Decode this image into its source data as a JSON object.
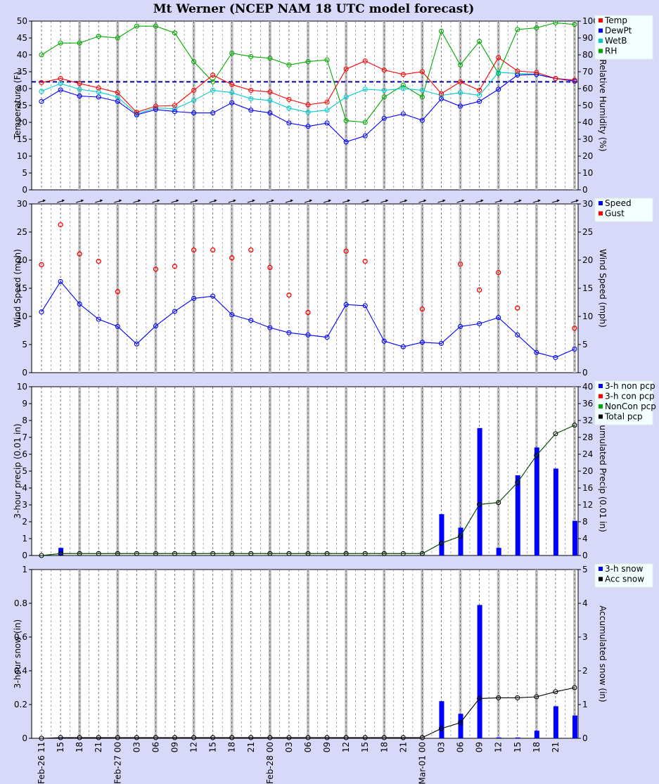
{
  "title": "Mt Werner (NCEP NAM 18 UTC model forecast)",
  "time_labels": [
    "Feb-26 11",
    "15",
    "18",
    "21",
    "Feb-27 00",
    "03",
    "06",
    "09",
    "12",
    "15",
    "18",
    "21",
    "Feb-28 00",
    "03",
    "06",
    "09",
    "12",
    "15",
    "18",
    "21",
    "Mar-01 00",
    "03",
    "06",
    "09",
    "12",
    "15",
    "18",
    "21"
  ],
  "colors": {
    "temp": "#ff0000",
    "dewpt": "#0000ff",
    "wetb": "#00cccc",
    "rh": "#00aa00",
    "speed": "#0000ff",
    "gust": "#ff0000",
    "nonpcp": "#0000ff",
    "conpcp": "#ff0000",
    "noncon": "#00aa00",
    "total": "#000000"
  },
  "chart_data": [
    {
      "type": "line",
      "ylabel": "Temperature (F)",
      "ylabel_right": "Relative Humidity (%)",
      "ylim": [
        0,
        50
      ],
      "ylim_right": [
        0,
        100
      ],
      "yticks": [
        0,
        5,
        10,
        15,
        20,
        25,
        30,
        35,
        40,
        45,
        50
      ],
      "yticks_right": [
        0,
        10,
        20,
        30,
        40,
        50,
        60,
        70,
        80,
        90,
        100
      ],
      "freezing_line": 32,
      "legend": [
        "Temp",
        "DewPt",
        "WetB",
        "RH"
      ],
      "series": [
        {
          "name": "Temp",
          "values": [
            31.8,
            33,
            31.5,
            30.2,
            28.8,
            23,
            24.8,
            25,
            29.5,
            34,
            31.2,
            29.5,
            29,
            26.8,
            25.2,
            26,
            35.8,
            38.2,
            35.5,
            34.2,
            35,
            28.5,
            32,
            29.5,
            39.2,
            35.2,
            34.8,
            33,
            32.5
          ]
        },
        {
          "name": "DewPt",
          "values": [
            26.2,
            29.6,
            27.8,
            27.5,
            26.2,
            22.2,
            23.8,
            23.2,
            22.8,
            22.8,
            25.8,
            23.6,
            22.8,
            19.8,
            18.8,
            19.8,
            14.2,
            16,
            21.2,
            22.5,
            20.6,
            27,
            24.8,
            26.2,
            29.8,
            34,
            34.2,
            33,
            32.2
          ]
        },
        {
          "name": "WetB",
          "values": [
            29.2,
            31.5,
            29.8,
            29,
            27.5,
            22.5,
            24.3,
            24,
            26.5,
            29.5,
            28.8,
            27,
            26.5,
            24.2,
            23,
            23.6,
            27.5,
            29.8,
            29.5,
            30,
            29.5,
            28,
            28.8,
            28,
            34.8,
            34.5,
            34.3,
            33,
            32.5
          ]
        },
        {
          "name": "RH",
          "values": [
            80,
            87,
            87,
            91,
            90,
            97,
            97,
            93,
            76,
            64,
            81,
            79,
            78,
            74,
            76,
            77,
            41,
            40,
            55,
            62,
            55,
            94,
            74,
            88,
            69,
            95,
            96,
            99,
            98
          ]
        }
      ]
    },
    {
      "type": "line",
      "ylabel": "Wind Speed (mph)",
      "ylabel_right": "Wind Speed (mph)",
      "ylim": [
        0,
        30
      ],
      "yticks": [
        0,
        5,
        10,
        15,
        20,
        25,
        30
      ],
      "legend": [
        "Speed",
        "Gust"
      ],
      "series": [
        {
          "name": "Speed",
          "values": [
            10.8,
            16.2,
            12.2,
            9.5,
            8.2,
            5.1,
            8.3,
            10.9,
            13.2,
            13.6,
            10.3,
            9.3,
            8,
            7.1,
            6.7,
            6.3,
            12.1,
            11.9,
            5.6,
            4.6,
            5.4,
            5.2,
            8.2,
            8.7,
            9.8,
            6.7,
            3.6,
            2.7,
            4.2
          ]
        },
        {
          "name": "Gust",
          "values": [
            19.2,
            26.3,
            21.1,
            19.8,
            14.4,
            null,
            18.4,
            18.9,
            21.8,
            21.8,
            20.4,
            21.8,
            18.7,
            13.8,
            10.7,
            null,
            21.6,
            19.8,
            null,
            null,
            11.3,
            null,
            19.3,
            14.7,
            17.8,
            11.5,
            null,
            null,
            7.9
          ]
        }
      ]
    },
    {
      "type": "bar",
      "ylabel": "3-hour precip (0.01 in)",
      "ylabel_right": "Accumulated Precip (0.01 in)",
      "ylim": [
        0,
        10
      ],
      "ylim_right": [
        0,
        40
      ],
      "yticks": [
        0,
        1,
        2,
        3,
        4,
        5,
        6,
        7,
        8,
        9,
        10
      ],
      "yticks_right": [
        0,
        4,
        8,
        12,
        16,
        20,
        24,
        28,
        32,
        36,
        40
      ],
      "legend": [
        "3-h non pcp",
        "3-h con pcp",
        "NonCon pcp",
        "Total pcp"
      ],
      "series": [
        {
          "name": "3-h non pcp",
          "values": [
            0,
            0.45,
            0,
            0,
            0,
            0,
            0,
            0,
            0,
            0,
            0,
            0,
            0,
            0,
            0,
            0,
            0,
            0,
            0,
            0,
            0,
            2.45,
            1.65,
            7.55,
            0.45,
            4.75,
            6.4,
            5.15,
            2.05
          ]
        },
        {
          "name": "Total pcp",
          "values": [
            0,
            0.45,
            0.45,
            0.45,
            0.45,
            0.45,
            0.45,
            0.45,
            0.45,
            0.45,
            0.45,
            0.45,
            0.45,
            0.45,
            0.45,
            0.45,
            0.45,
            0.45,
            0.45,
            0.45,
            0.45,
            2.9,
            4.55,
            12.1,
            12.55,
            17.3,
            23.7,
            28.85,
            30.9
          ]
        }
      ]
    },
    {
      "type": "bar",
      "ylabel": "3-hour snow (in)",
      "ylabel_right": "Accumulated snow (in)",
      "ylim": [
        0,
        1
      ],
      "ylim_right": [
        0,
        5
      ],
      "yticks": [
        0,
        0.2,
        0.4,
        0.6,
        0.8,
        1
      ],
      "yticks_labels": [
        "0",
        "0.2",
        "0.4",
        "0.6",
        "0.8",
        "1"
      ],
      "yticks_right": [
        0,
        1,
        2,
        3,
        4,
        5
      ],
      "legend": [
        "3-h snow",
        "Acc snow"
      ],
      "series": [
        {
          "name": "3-h snow",
          "values": [
            0,
            0.005,
            0,
            0,
            0,
            0,
            0,
            0,
            0,
            0,
            0,
            0,
            0,
            0,
            0,
            0,
            0,
            0,
            0,
            0,
            0,
            0.22,
            0.145,
            0.79,
            0.005,
            0.005,
            0.045,
            0.19,
            0.135
          ]
        },
        {
          "name": "Acc snow",
          "values": [
            0,
            0.02,
            0.02,
            0.02,
            0.02,
            0.02,
            0.02,
            0.02,
            0.02,
            0.02,
            0.02,
            0.02,
            0.02,
            0.02,
            0.02,
            0.02,
            0.02,
            0.02,
            0.02,
            0.02,
            0.02,
            0.29,
            0.46,
            1.18,
            1.2,
            1.2,
            1.23,
            1.38,
            1.5
          ]
        }
      ]
    }
  ]
}
